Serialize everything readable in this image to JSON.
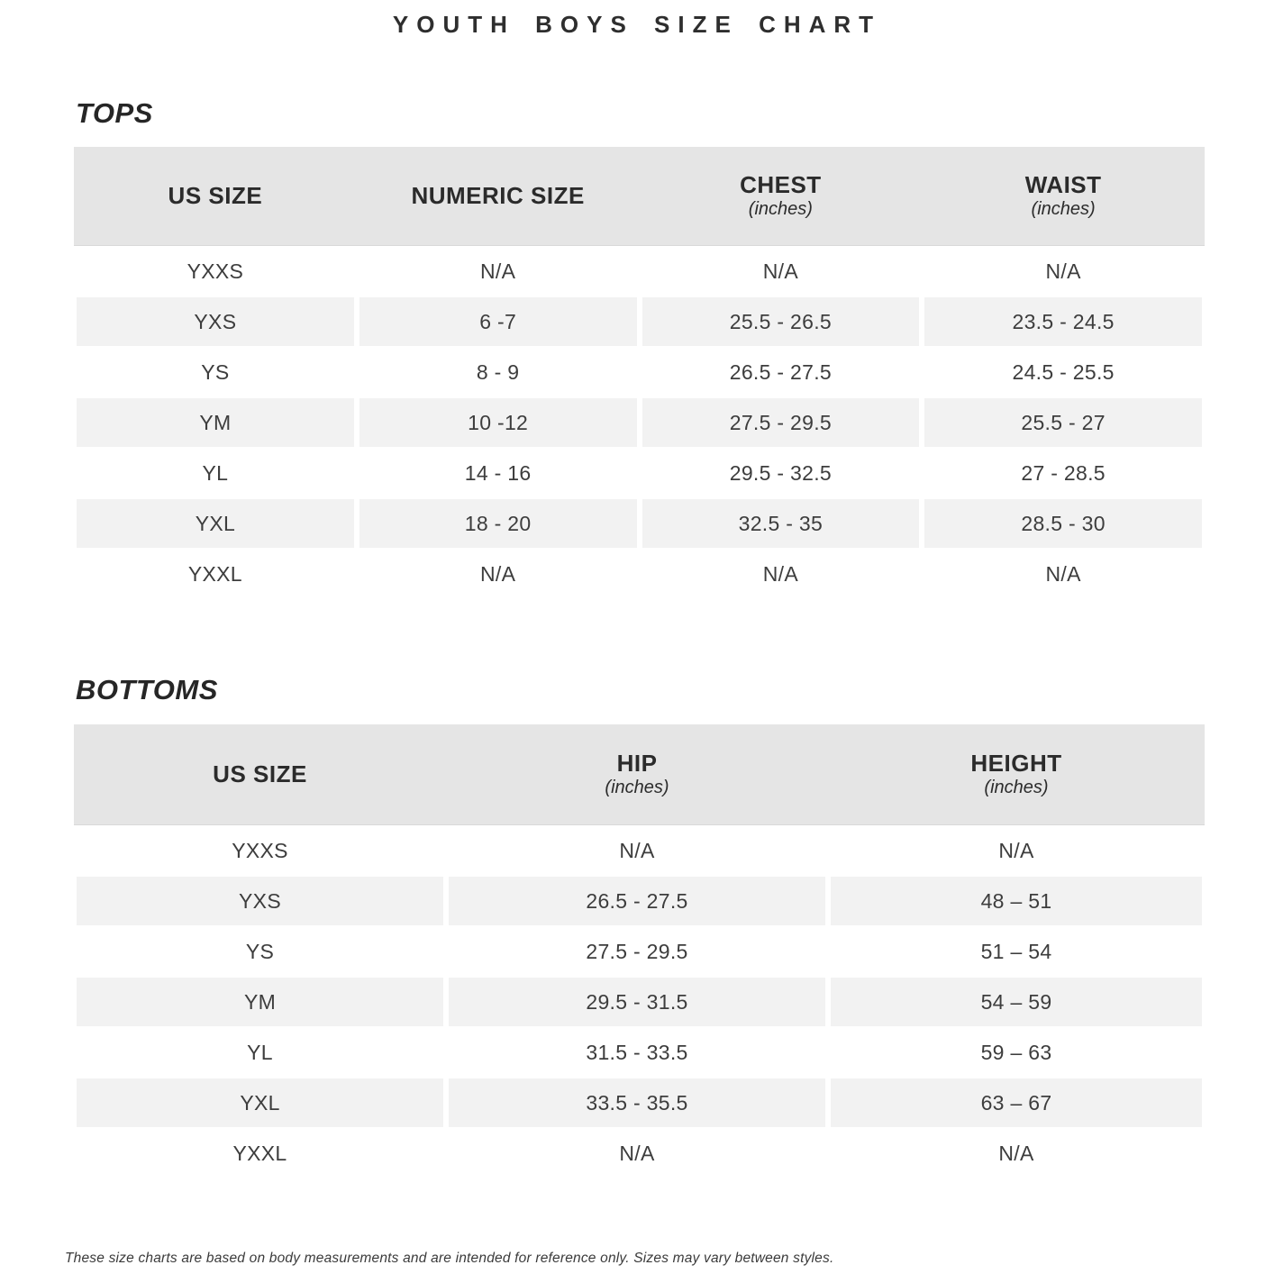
{
  "page": {
    "title": "YOUTH BOYS SIZE CHART",
    "footnote": "These size charts are based on body measurements and are intended for reference only. Sizes may vary between styles."
  },
  "colors": {
    "header_bg": "#e5e5e5",
    "stripe_bg": "#f2f2f2",
    "text_primary": "#383838",
    "heading_color": "#262626"
  },
  "tops": {
    "section_label": "TOPS",
    "columns": [
      {
        "label": "US SIZE",
        "sub": ""
      },
      {
        "label": "NUMERIC SIZE",
        "sub": ""
      },
      {
        "label": "CHEST",
        "sub": "(inches)"
      },
      {
        "label": "WAIST",
        "sub": "(inches)"
      }
    ],
    "rows": [
      [
        "YXXS",
        "N/A",
        "N/A",
        "N/A"
      ],
      [
        "YXS",
        "6 -7",
        "25.5 - 26.5",
        "23.5 - 24.5"
      ],
      [
        "YS",
        "8 - 9",
        "26.5 - 27.5",
        "24.5 - 25.5"
      ],
      [
        "YM",
        "10 -12",
        "27.5 - 29.5",
        "25.5 - 27"
      ],
      [
        "YL",
        "14 - 16",
        "29.5 - 32.5",
        "27 - 28.5"
      ],
      [
        "YXL",
        "18 - 20",
        "32.5 - 35",
        "28.5 - 30"
      ],
      [
        "YXXL",
        "N/A",
        "N/A",
        "N/A"
      ]
    ]
  },
  "bottoms": {
    "section_label": "BOTTOMS",
    "columns": [
      {
        "label": "US SIZE",
        "sub": ""
      },
      {
        "label": "HIP",
        "sub": "(inches)"
      },
      {
        "label": "HEIGHT",
        "sub": "(inches)"
      }
    ],
    "rows": [
      [
        "YXXS",
        "N/A",
        "N/A"
      ],
      [
        "YXS",
        "26.5 - 27.5",
        "48 – 51"
      ],
      [
        "YS",
        "27.5 - 29.5",
        "51 – 54"
      ],
      [
        "YM",
        "29.5 - 31.5",
        "54 – 59"
      ],
      [
        "YL",
        "31.5 - 33.5",
        "59 – 63"
      ],
      [
        "YXL",
        "33.5 - 35.5",
        "63 – 67"
      ],
      [
        "YXXL",
        "N/A",
        "N/A"
      ]
    ]
  }
}
